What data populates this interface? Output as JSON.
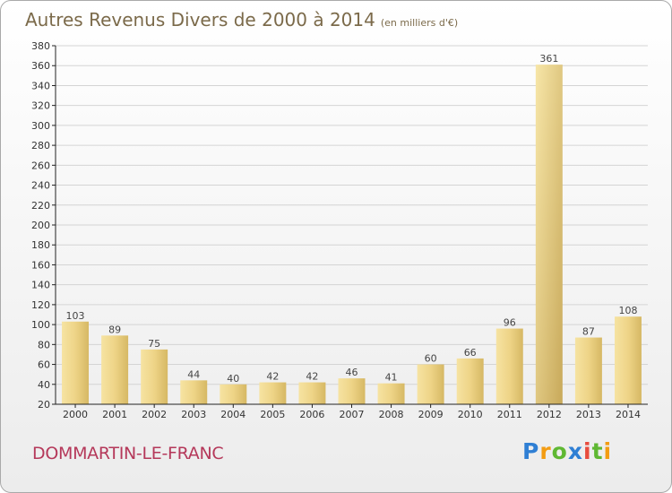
{
  "page": {
    "title": "Autres Revenus Divers de 2000 à 2014",
    "unit": "(en milliers d'€)",
    "location": "DOMMARTIN-LE-FRANC",
    "brand": "Proxiti"
  },
  "chart_data": {
    "type": "bar",
    "title": "Autres Revenus Divers de 2000 à 2014",
    "subtitle": "(en milliers d'€)",
    "xlabel": "",
    "ylabel": "",
    "categories": [
      "2000",
      "2001",
      "2002",
      "2003",
      "2004",
      "2005",
      "2006",
      "2007",
      "2008",
      "2009",
      "2010",
      "2011",
      "2012",
      "2013",
      "2014"
    ],
    "values": [
      103,
      89,
      75,
      44,
      40,
      42,
      42,
      46,
      41,
      60,
      66,
      96,
      361,
      87,
      108
    ],
    "ylim": [
      20,
      380
    ],
    "yticks": [
      20,
      40,
      60,
      80,
      100,
      120,
      140,
      160,
      180,
      200,
      220,
      240,
      260,
      280,
      300,
      320,
      340,
      360,
      380
    ],
    "grid": true,
    "legend": "none",
    "bar_color": "#e8cf7a"
  }
}
